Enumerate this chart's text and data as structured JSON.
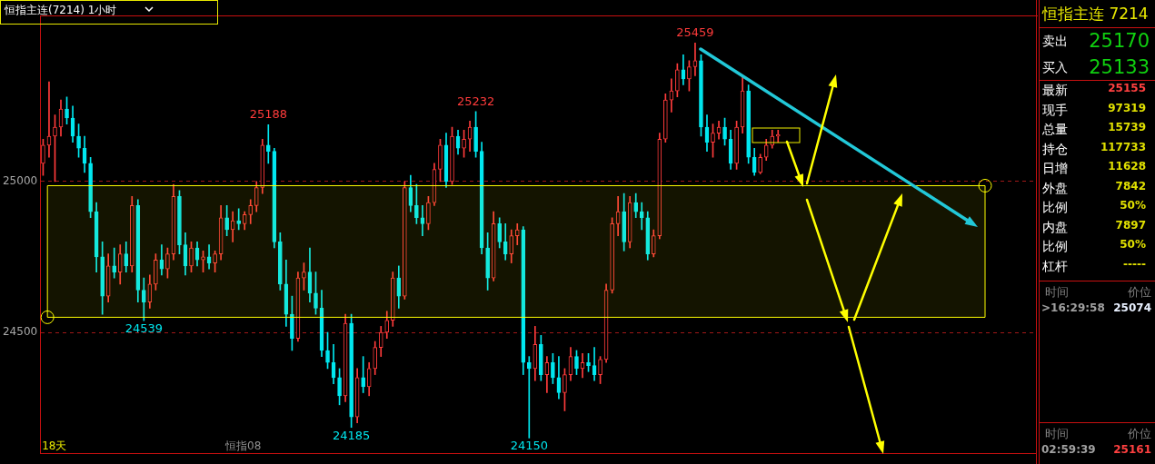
{
  "chart_data": [
    {
      "type": "candlestick",
      "title": "恒指主连(7214) 1小时",
      "tick_labels": "y",
      "grid": "y",
      "ylim": [
        24100,
        25550
      ],
      "yticks": [
        24500,
        25000
      ],
      "categories": [
        null,
        null,
        null,
        null,
        null,
        null,
        null,
        null,
        null,
        null,
        null,
        null,
        null,
        null,
        null,
        null,
        null,
        null,
        null,
        null,
        null,
        null,
        null,
        null,
        null,
        null,
        null,
        null,
        null,
        null,
        null,
        null,
        null,
        null,
        null,
        null,
        null,
        null,
        null,
        null,
        null,
        null,
        null,
        null,
        null,
        null,
        null,
        null,
        null,
        null,
        null,
        null,
        null,
        null,
        null,
        null,
        null,
        null,
        null,
        null,
        null,
        null,
        null,
        null,
        null,
        null,
        null,
        null,
        null,
        null,
        null,
        null,
        null,
        null,
        null,
        null,
        null,
        null,
        null,
        null,
        null,
        null,
        null,
        null,
        null,
        null,
        null,
        null,
        null,
        null,
        null,
        null,
        null,
        null,
        null,
        null,
        null,
        null,
        null,
        null,
        null,
        null,
        null,
        null,
        null,
        null,
        null,
        null,
        null,
        null,
        null,
        null,
        null,
        null,
        null,
        null,
        null,
        null,
        null,
        null,
        null,
        null,
        null,
        null,
        null,
        null,
        null,
        null,
        null,
        null,
        null,
        null,
        null,
        null,
        null,
        null,
        null,
        null,
        null,
        null,
        null,
        null,
        null,
        null,
        null,
        null,
        null,
        null,
        null,
        null,
        null,
        null,
        null,
        null,
        null,
        null,
        null,
        null,
        null,
        null,
        null,
        null,
        null,
        null,
        null,
        null,
        null,
        null
      ],
      "series": [
        {
          "type": "candlestick",
          "colors": [
            "#ff3b3b",
            "#ff3b3b",
            "#ff3b3b",
            "#ff3b3b",
            "#00e8f0",
            "#00e8f0",
            "#00e8f0",
            "#00e8f0",
            "#00e8f0",
            "#00e8f0",
            "#00e8f0",
            "#ff3b3b",
            "#00e8f0",
            "#ff3b3b",
            "#00e8f0",
            "#ff3b3b",
            "#00e8f0",
            "#00e8f0",
            "#ff3b3b",
            "#ff3b3b",
            "#00e8f0",
            "#ff3b3b",
            "#ff3b3b",
            "#00e8f0",
            "#00e8f0",
            "#ff3b3b",
            "#00e8f0",
            "#ff3b3b",
            "#00e8f0",
            "#ff3b3b",
            "#ff3b3b",
            "#00e8f0",
            "#ff3b3b",
            "#00e8f0",
            "#ff3b3b",
            "#ff3b3b",
            "#ff3b3b",
            "#ff3b3b",
            "#00e8f0",
            "#00e8f0",
            "#00e8f0",
            "#00e8f0",
            "#00e8f0",
            "#ff3b3b",
            "#ff3b3b",
            "#00e8f0",
            "#00e8f0",
            "#00e8f0",
            "#00e8f0",
            "#00e8f0",
            "#00e8f0",
            "#ff3b3b",
            "#00e8f0",
            "#ff3b3b",
            "#00e8f0",
            "#ff3b3b",
            "#ff3b3b",
            "#ff3b3b",
            "#ff3b3b",
            "#ff3b3b",
            "#00e8f0",
            "#ff3b3b",
            "#00e8f0",
            "#00e8f0",
            "#00e8f0",
            "#ff3b3b",
            "#ff3b3b",
            "#ff3b3b",
            "#00e8f0",
            "#ff3b3b",
            "#00e8f0",
            "#ff3b3b",
            "#ff3b3b",
            "#00e8f0",
            "#00e8f0",
            "#00e8f0",
            "#ff3b3b",
            "#00e8f0",
            "#00e8f0",
            "#ff3b3b",
            "#ff3b3b",
            "#00e8f0",
            "#00e8f0",
            "#ff3b3b",
            "#00e8f0",
            "#ff3b3b",
            "#00e8f0",
            "#00e8f0",
            "#ff3b3b",
            "#ff3b3b",
            "#00e8f0",
            "#ff3b3b",
            "#00e8f0",
            "#00e8f0",
            "#ff3b3b",
            "#ff3b3b",
            "#ff3b3b",
            "#ff3b3b",
            "#00e8f0",
            "#ff3b3b",
            "#00e8f0",
            "#00e8f0",
            "#00e8f0",
            "#ff3b3b",
            "#ff3b3b",
            "#ff3b3b",
            "#ff3b3b",
            "#ff3b3b",
            "#00e8f0",
            "#ff3b3b",
            "#ff3b3b",
            "#00e8f0",
            "#00e8f0",
            "#ff3b3b",
            "#ff3b3b",
            "#00e8f0",
            "#00e8f0",
            "#ff3b3b",
            "#ff3b3b",
            "#00e8f0",
            "#00e8f0",
            "#ff3b3b",
            "#ff3b3b",
            "#ff3b3b",
            "#ff3b3b",
            null,
            null,
            null,
            null,
            null,
            null,
            null,
            null,
            null,
            null,
            null,
            null,
            null,
            null,
            null,
            null,
            null,
            null,
            null,
            null,
            null,
            null,
            null,
            null,
            null,
            null,
            null,
            null,
            null,
            null,
            null,
            null,
            null,
            null,
            null,
            null,
            null,
            null,
            null,
            null,
            null,
            null,
            null
          ],
          "ohlc": [
            [
              25060,
              25140,
              25020,
              25120
            ],
            [
              25120,
              25330,
              25080,
              25150
            ],
            [
              25150,
              25220,
              25000,
              25180
            ],
            [
              25180,
              25270,
              25150,
              25240
            ],
            [
              25240,
              25280,
              25190,
              25210
            ],
            [
              25210,
              25250,
              25130,
              25150
            ],
            [
              25150,
              25190,
              25080,
              25110
            ],
            [
              25110,
              25150,
              25030,
              25060
            ],
            [
              25060,
              25080,
              24880,
              24900
            ],
            [
              24900,
              24930,
              24700,
              24750
            ],
            [
              24750,
              24800,
              24560,
              24620
            ],
            [
              24620,
              24760,
              24600,
              24720
            ],
            [
              24720,
              24780,
              24680,
              24700
            ],
            [
              24700,
              24790,
              24660,
              24760
            ],
            [
              24760,
              24800,
              24700,
              24720
            ],
            [
              24720,
              24950,
              24700,
              24920
            ],
            [
              24920,
              24940,
              24600,
              24640
            ],
            [
              24640,
              24680,
              24539,
              24600
            ],
            [
              24600,
              24690,
              24580,
              24660
            ],
            [
              24660,
              24760,
              24640,
              24740
            ],
            [
              24740,
              24790,
              24690,
              24710
            ],
            [
              24710,
              24780,
              24680,
              24760
            ],
            [
              24760,
              24990,
              24740,
              24950
            ],
            [
              24950,
              24970,
              24760,
              24790
            ],
            [
              24790,
              24830,
              24690,
              24720
            ],
            [
              24720,
              24800,
              24700,
              24780
            ],
            [
              24780,
              24800,
              24720,
              24740
            ],
            [
              24740,
              24770,
              24700,
              24750
            ],
            [
              24750,
              24790,
              24710,
              24730
            ],
            [
              24730,
              24770,
              24700,
              24760
            ],
            [
              24760,
              24920,
              24740,
              24880
            ],
            [
              24880,
              24920,
              24820,
              24840
            ],
            [
              24840,
              24900,
              24800,
              24870
            ],
            [
              24870,
              24910,
              24840,
              24860
            ],
            [
              24860,
              24900,
              24840,
              24890
            ],
            [
              24890,
              24940,
              24860,
              24920
            ],
            [
              24920,
              25000,
              24900,
              24980
            ],
            [
              24980,
              25140,
              24960,
              25120
            ],
            [
              25120,
              25188,
              25060,
              25100
            ],
            [
              25100,
              25110,
              24780,
              24800
            ],
            [
              24800,
              24830,
              24640,
              24660
            ],
            [
              24660,
              24740,
              24520,
              24560
            ],
            [
              24560,
              24620,
              24440,
              24480
            ],
            [
              24480,
              24700,
              24470,
              24680
            ],
            [
              24680,
              24730,
              24640,
              24700
            ],
            [
              24700,
              24780,
              24600,
              24630
            ],
            [
              24630,
              24700,
              24560,
              24580
            ],
            [
              24580,
              24640,
              24420,
              24440
            ],
            [
              24440,
              24500,
              24380,
              24400
            ],
            [
              24400,
              24460,
              24330,
              24350
            ],
            [
              24350,
              24380,
              24260,
              24290
            ],
            [
              24290,
              24560,
              24270,
              24530
            ],
            [
              24530,
              24560,
              24185,
              24220
            ],
            [
              24220,
              24380,
              24200,
              24350
            ],
            [
              24350,
              24420,
              24300,
              24320
            ],
            [
              24320,
              24400,
              24290,
              24380
            ],
            [
              24380,
              24470,
              24360,
              24450
            ],
            [
              24450,
              24520,
              24420,
              24500
            ],
            [
              24500,
              24570,
              24480,
              24540
            ],
            [
              24540,
              24700,
              24520,
              24680
            ],
            [
              24680,
              24720,
              24580,
              24620
            ],
            [
              24620,
              25000,
              24610,
              24980
            ],
            [
              24980,
              25020,
              24900,
              24920
            ],
            [
              24920,
              24990,
              24860,
              24880
            ],
            [
              24880,
              24920,
              24820,
              24860
            ],
            [
              24860,
              24950,
              24840,
              24930
            ],
            [
              24930,
              25060,
              24920,
              25040
            ],
            [
              25040,
              25140,
              25000,
              25120
            ],
            [
              25120,
              25160,
              24980,
              25000
            ],
            [
              25000,
              25180,
              24990,
              25150
            ],
            [
              25150,
              25170,
              25090,
              25110
            ],
            [
              25110,
              25170,
              25080,
              25140
            ],
            [
              25140,
              25200,
              25100,
              25180
            ],
            [
              25180,
              25232,
              25080,
              25100
            ],
            [
              25100,
              25130,
              24760,
              24780
            ],
            [
              24780,
              24830,
              24640,
              24680
            ],
            [
              24680,
              24900,
              24670,
              24860
            ],
            [
              24860,
              24880,
              24780,
              24800
            ],
            [
              24800,
              24860,
              24740,
              24760
            ],
            [
              24760,
              24840,
              24730,
              24820
            ],
            [
              24820,
              24860,
              24790,
              24840
            ],
            [
              24840,
              24850,
              24360,
              24400
            ],
            [
              24400,
              24420,
              24150,
              24380
            ],
            [
              24380,
              24520,
              24340,
              24460
            ],
            [
              24460,
              24490,
              24340,
              24360
            ],
            [
              24360,
              24420,
              24300,
              24400
            ],
            [
              24400,
              24430,
              24330,
              24350
            ],
            [
              24350,
              24420,
              24280,
              24300
            ],
            [
              24300,
              24380,
              24240,
              24360
            ],
            [
              24360,
              24450,
              24340,
              24420
            ],
            [
              24420,
              24440,
              24360,
              24380
            ],
            [
              24380,
              24430,
              24350,
              24400
            ],
            [
              24400,
              24430,
              24370,
              24390
            ],
            [
              24390,
              24450,
              24340,
              24360
            ],
            [
              24360,
              24420,
              24330,
              24410
            ],
            [
              24410,
              24660,
              24400,
              24640
            ],
            [
              24640,
              24880,
              24630,
              24860
            ],
            [
              24860,
              24950,
              24820,
              24900
            ],
            [
              24900,
              24960,
              24770,
              24800
            ],
            [
              24800,
              24950,
              24780,
              24930
            ],
            [
              24930,
              24960,
              24880,
              24900
            ],
            [
              24900,
              24930,
              24840,
              24880
            ],
            [
              24880,
              24900,
              24740,
              24760
            ],
            [
              24760,
              24840,
              24750,
              24820
            ],
            [
              24820,
              25160,
              24810,
              25140
            ],
            [
              25140,
              25290,
              25130,
              25270
            ],
            [
              25270,
              25340,
              25230,
              25300
            ],
            [
              25300,
              25390,
              25280,
              25370
            ],
            [
              25370,
              25420,
              25320,
              25340
            ],
            [
              25340,
              25400,
              25300,
              25380
            ],
            [
              25380,
              25459,
              25350,
              25400
            ],
            [
              25400,
              25420,
              25150,
              25180
            ],
            [
              25180,
              25220,
              25100,
              25130
            ],
            [
              25130,
              25190,
              25080,
              25160
            ],
            [
              25160,
              25200,
              25140,
              25180
            ],
            [
              25180,
              25210,
              25120,
              25140
            ],
            [
              25140,
              25170,
              25040,
              25060
            ],
            [
              25060,
              25200,
              25040,
              25180
            ],
            [
              25180,
              25350,
              25160,
              25300
            ],
            [
              25300,
              25320,
              25060,
              25080
            ],
            [
              25080,
              25110,
              25020,
              25030
            ],
            [
              25030,
              25090,
              25025,
              25080
            ],
            [
              25080,
              25140,
              25070,
              25120
            ],
            [
              25120,
              25170,
              25110,
              25150
            ],
            [
              25150,
              25170,
              25130,
              25155
            ],
            null,
            null,
            null,
            null,
            null,
            null,
            null,
            null,
            null,
            null,
            null,
            null,
            null,
            null,
            null,
            null,
            null,
            null,
            null,
            null,
            null,
            null,
            null,
            null,
            null,
            null,
            null,
            null,
            null,
            null,
            null,
            null,
            null,
            null,
            null,
            null,
            null,
            null,
            null,
            null,
            null,
            null,
            null
          ]
        }
      ],
      "bands": [
        {
          "axis": "y",
          "from": 24550,
          "to": 24986,
          "color": "#ffff00"
        }
      ],
      "annotations": [
        {
          "text": "25459",
          "y": 25459
        },
        {
          "text": "25188",
          "y": 25188
        },
        {
          "text": "25232",
          "y": 25232
        },
        {
          "text": "24539",
          "y": 24539
        },
        {
          "text": "24185",
          "y": 24185
        },
        {
          "text": "24150",
          "y": 24150
        },
        "18天",
        "恒指08"
      ]
    },
    {
      "type": "other",
      "title": "恒指主连 7214",
      "categories": [
        "卖出",
        "买入",
        "最新",
        "现手",
        "总量",
        "持仓",
        "日增",
        "外盘",
        "比例",
        "内盘",
        "比例",
        "杠杆"
      ],
      "value_labels": [
        "25170",
        "25133",
        "25155",
        "97319",
        "15739",
        "117733",
        "11628",
        "7842",
        "50%",
        "7897",
        "50%",
        "-----"
      ],
      "colors": [
        "#10d010",
        "#10d010",
        "#ff4040",
        "#e0e000",
        "#e0e000",
        "#e0e000",
        "#e0e000",
        "#e0e000",
        "#e0e000",
        "#e0e000",
        "#e0e000",
        "#e0e000"
      ],
      "annotations": [
        "时间",
        "价位",
        ">16:29:58",
        "25074",
        "时间",
        "价位",
        "02:59:39",
        "25161"
      ]
    }
  ]
}
